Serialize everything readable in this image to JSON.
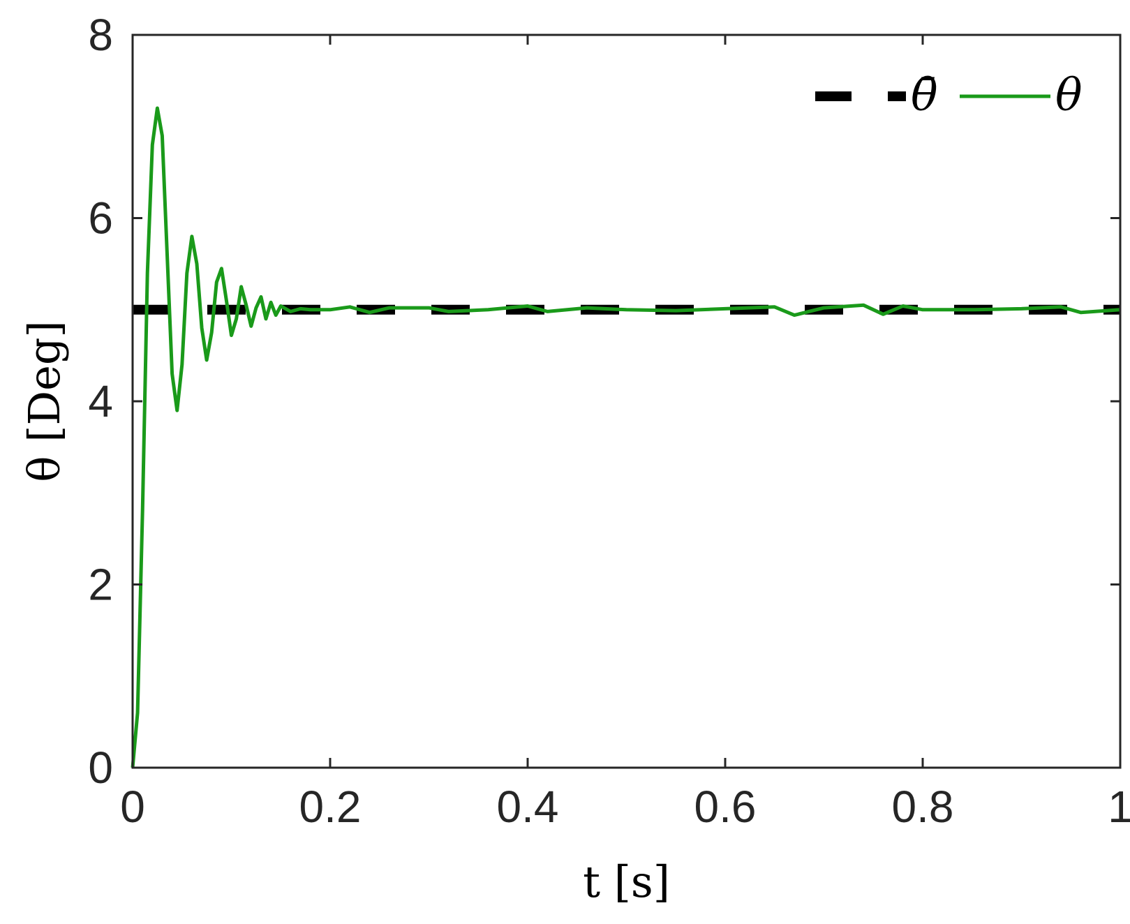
{
  "chart_data": {
    "type": "line",
    "title": "",
    "xlabel": "t [s]",
    "ylabel": "θ [Deg]",
    "xlim": [
      0,
      1
    ],
    "ylim": [
      0,
      8
    ],
    "xticks": [
      0,
      0.2,
      0.4,
      0.6,
      0.8,
      1
    ],
    "yticks": [
      0,
      2,
      4,
      6,
      8
    ],
    "xtick_labels": [
      "0",
      "0.2",
      "0.4",
      "0.6",
      "0.8",
      "1"
    ],
    "ytick_labels": [
      "0",
      "2",
      "4",
      "6",
      "8"
    ],
    "grid": false,
    "legend_position": "top-right",
    "series": [
      {
        "name": "θ̄",
        "style": "dashed",
        "color": "#000000",
        "x": [
          0,
          1
        ],
        "y": [
          5,
          5
        ]
      },
      {
        "name": "θ",
        "style": "solid",
        "color": "#1a9a1a",
        "x": [
          0,
          0.005,
          0.01,
          0.015,
          0.02,
          0.025,
          0.03,
          0.035,
          0.04,
          0.045,
          0.05,
          0.055,
          0.06,
          0.065,
          0.07,
          0.075,
          0.08,
          0.085,
          0.09,
          0.095,
          0.1,
          0.105,
          0.11,
          0.115,
          0.12,
          0.125,
          0.13,
          0.135,
          0.14,
          0.145,
          0.15,
          0.16,
          0.17,
          0.18,
          0.2,
          0.22,
          0.24,
          0.26,
          0.3,
          0.32,
          0.36,
          0.4,
          0.42,
          0.46,
          0.5,
          0.55,
          0.6,
          0.65,
          0.67,
          0.7,
          0.74,
          0.76,
          0.78,
          0.8,
          0.85,
          0.9,
          0.94,
          0.96,
          1.0
        ],
        "y": [
          0,
          0.6,
          2.8,
          5.4,
          6.8,
          7.2,
          6.9,
          5.6,
          4.3,
          3.9,
          4.4,
          5.4,
          5.8,
          5.5,
          4.8,
          4.45,
          4.75,
          5.3,
          5.45,
          5.1,
          4.72,
          4.9,
          5.25,
          5.05,
          4.82,
          5.02,
          5.14,
          4.9,
          5.08,
          4.94,
          5.04,
          4.98,
          5.01,
          5.0,
          5.0,
          5.03,
          4.97,
          5.02,
          5.02,
          4.98,
          5.0,
          5.04,
          4.98,
          5.02,
          5.0,
          4.99,
          5.01,
          5.03,
          4.94,
          5.02,
          5.05,
          4.95,
          5.04,
          5.0,
          5.0,
          5.01,
          5.03,
          4.97,
          5.0
        ]
      }
    ]
  },
  "colors": {
    "axis": "#262626",
    "reference": "#000000",
    "response": "#1a9a1a"
  }
}
